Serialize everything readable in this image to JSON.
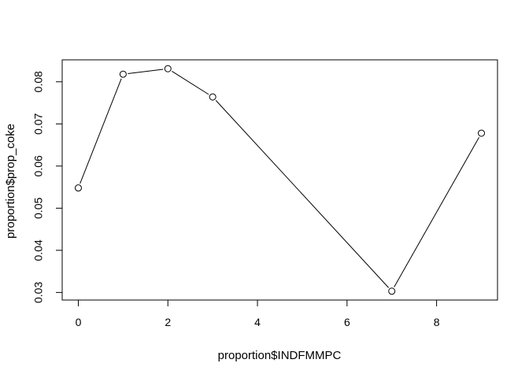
{
  "chart_data": {
    "type": "line",
    "title": "",
    "xlabel": "proportion$INDFMMPC",
    "ylabel": "proportion$prop_coke",
    "x": [
      0,
      1,
      2,
      3,
      7,
      9
    ],
    "y": [
      0.0548,
      0.0818,
      0.0831,
      0.0764,
      0.0303,
      0.0678
    ],
    "xticks": [
      0,
      2,
      4,
      6,
      8
    ],
    "xtick_labels": [
      "0",
      "2",
      "4",
      "6",
      "8"
    ],
    "yticks": [
      0.03,
      0.04,
      0.05,
      0.06,
      0.07,
      0.08
    ],
    "ytick_labels": [
      "0.03",
      "0.04",
      "0.05",
      "0.06",
      "0.07",
      "0.08"
    ],
    "xlim": [
      -0.36,
      9.36
    ],
    "ylim": [
      0.0282,
      0.0852
    ],
    "grid": false,
    "marker": "open-circle",
    "line_color": "#000000",
    "marker_fill": "#ffffff"
  }
}
